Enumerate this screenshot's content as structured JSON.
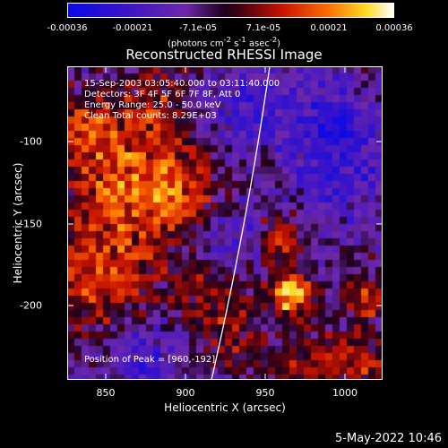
{
  "colorbar": {
    "ticks": [
      "-0.00036",
      "-0.00021",
      "-7.1e-05",
      "7.1e-05",
      "0.00021",
      "0.00036"
    ],
    "units_prefix": "(photons cm",
    "units_sup1": "-2",
    "units_mid1": " s",
    "units_sup2": "-1",
    "units_mid2": " asec",
    "units_sup3": "-2",
    "units_suffix": ")"
  },
  "title": "Reconstructed RHESSI Image",
  "annotations": {
    "time": "15-Sep-2003 03:05:40.000 to 03:11:40.000",
    "detectors": "Detectors: 3F 4F 5F 6F 7F 8F, Att 0",
    "energy": "Energy Range: 25.0 - 50.0 keV",
    "clean": "Clean     Total counts: 8.29E+03",
    "peak": "Position of Peak = [960,-192]"
  },
  "axes": {
    "xlabel": "Heliocentric X (arcsec)",
    "ylabel": "Heliocentric Y (arcsec)",
    "xticks": [
      "850",
      "900",
      "950",
      "1000"
    ],
    "yticks": [
      "-100",
      "-150",
      "-200"
    ]
  },
  "footer": {
    "date": "5-May-2022 10:46"
  },
  "colors": {
    "limb": "#ffffff",
    "background": "#000000"
  }
}
